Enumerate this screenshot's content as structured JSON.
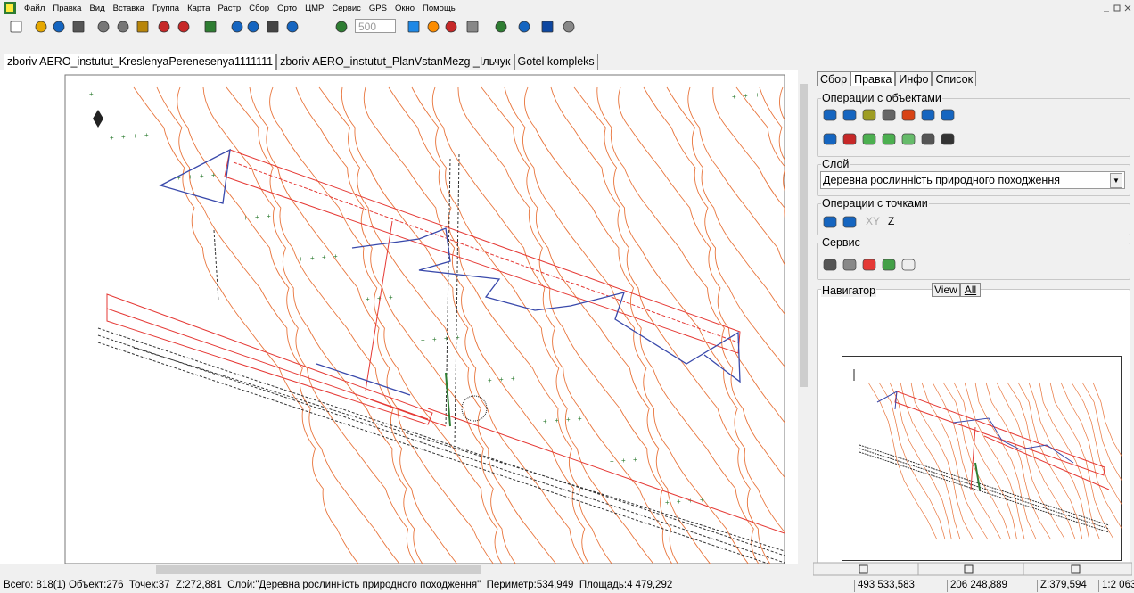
{
  "menu": [
    "Файл",
    "Правка",
    "Вид",
    "Вставка",
    "Группа",
    "Карта",
    "Растр",
    "Сбор",
    "Орто",
    "ЦМР",
    "Сервис",
    "GPS",
    "Окно",
    "Помощь"
  ],
  "toolbar": {
    "scale": "500"
  },
  "tabs": [
    "zboriv AERO_instutut_KreslenyaPerenesenya1111111",
    "zboriv AERO_instutut_PlanVstanMezg _Ільчук",
    "Gotel kompleks"
  ],
  "panel": {
    "tabs": [
      "Сбор",
      "Правка",
      "Инфо",
      "Список"
    ],
    "objects_ops": "Операции с объектами",
    "layer_group": "Слой",
    "layer_value": "Деревна рослинність природного походження",
    "points_ops": "Операции с точками",
    "points_labels": [
      "XY",
      "Z"
    ],
    "service": "Сервис",
    "navigator": "Навигатор",
    "navigator_tabs": [
      "View",
      "All"
    ]
  },
  "status": {
    "summary": "Всего: 818(1) Объект:276  Точек:37  Z:272,881  Слой:\"Деревна рослинність природного походження\"  Периметр:534,949  Площадь:4 479,292",
    "coords": [
      "493 533,583",
      "206 248,889",
      "Z:379,594",
      "1:2 063"
    ]
  }
}
